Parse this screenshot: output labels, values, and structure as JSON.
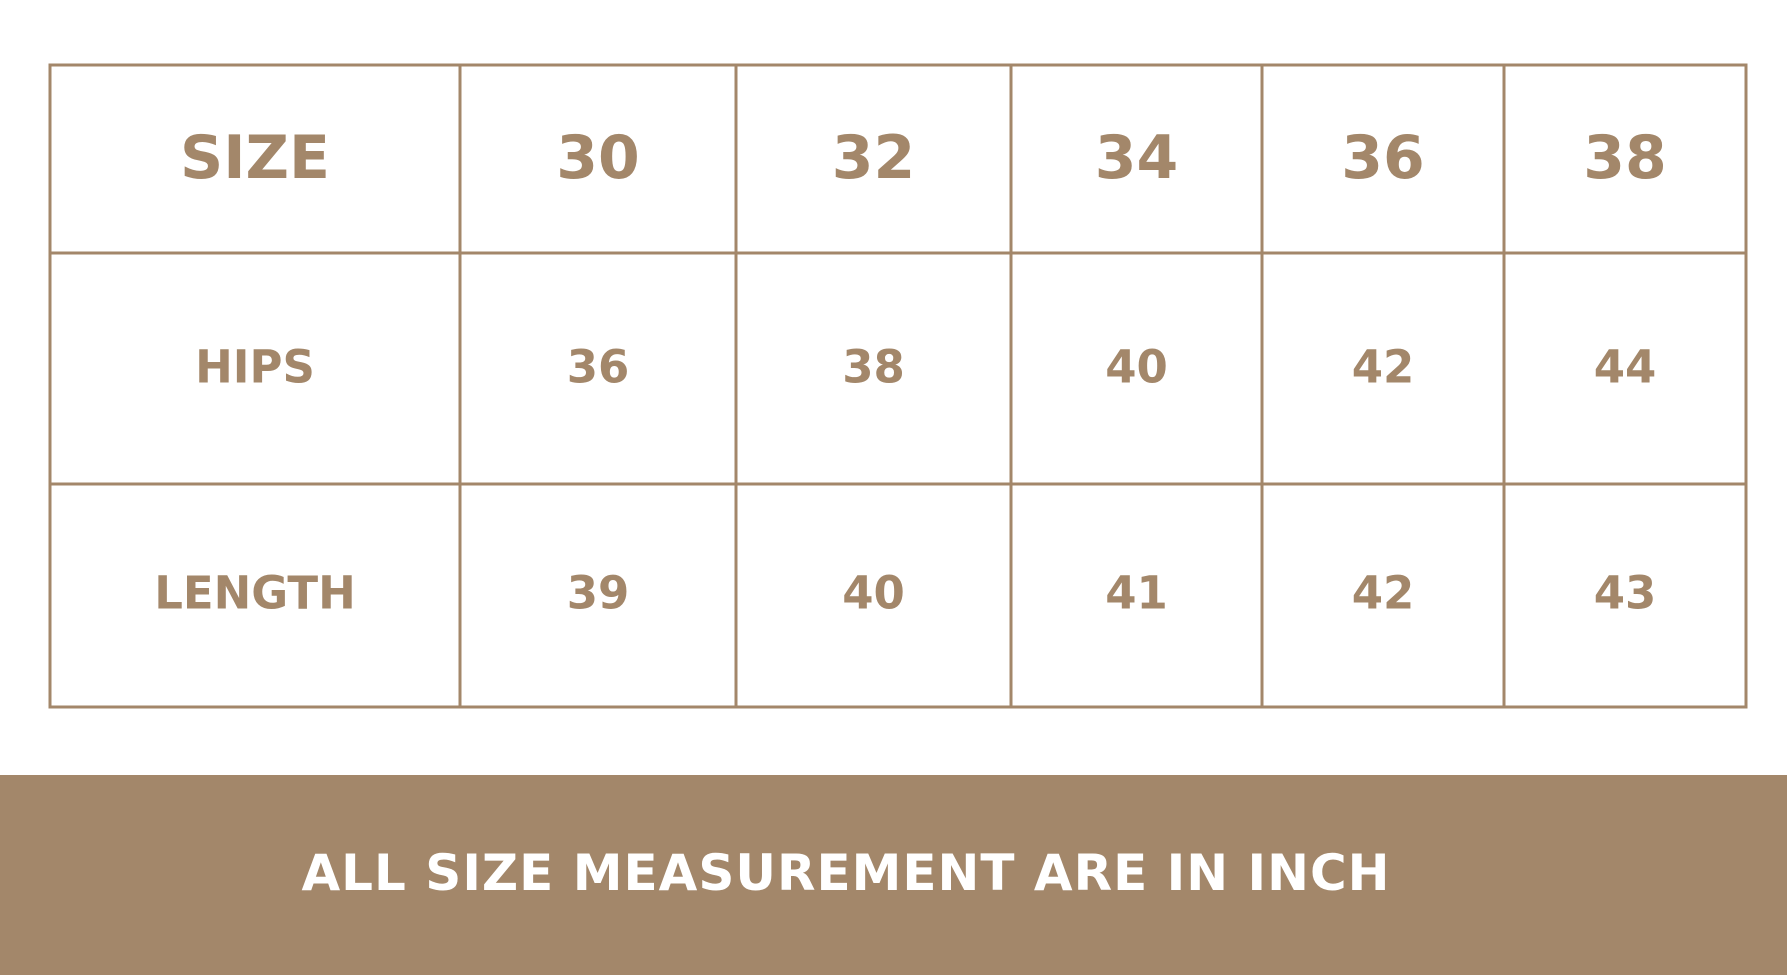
{
  "table": {
    "rows": [
      [
        "SIZE",
        "30",
        "32",
        "34",
        "36",
        "38"
      ],
      [
        "HIPS",
        "36",
        "38",
        "40",
        "42",
        "44"
      ],
      [
        "LENGTH",
        "39",
        "40",
        "41",
        "42",
        "43"
      ]
    ]
  },
  "footer": "ALL SIZE MEASUREMENT ARE IN INCH"
}
